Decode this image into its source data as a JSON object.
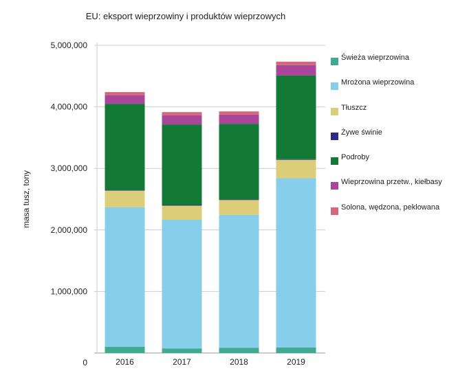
{
  "chart_data": {
    "type": "bar",
    "stacked": true,
    "title": "EU: eksport wieprzowiny i produktów wieprzowych",
    "xlabel": "",
    "ylabel": "masa tusz, tony",
    "ylim": [
      0,
      5000000
    ],
    "yticks": [
      "0",
      "1,000,000",
      "2,000,000",
      "3,000,000",
      "4,000,000",
      "5,000,000"
    ],
    "grid": true,
    "legend_position": "right",
    "categories": [
      "2016",
      "2017",
      "2018",
      "2019"
    ],
    "series": [
      {
        "name": "Świeża wieprzowina",
        "color": "#3fa991",
        "values": [
          100000,
          75000,
          86000,
          90000
        ]
      },
      {
        "name": "Mrożona wieprzowina",
        "color": "#87ceeb",
        "values": [
          2270000,
          2090000,
          2160000,
          2750000
        ]
      },
      {
        "name": "Tłuszcz",
        "color": "#dccd78",
        "values": [
          270000,
          230000,
          240000,
          300000
        ]
      },
      {
        "name": "Żywe świnie",
        "color": "#2e2a8c",
        "values": [
          10000,
          10000,
          10000,
          10000
        ]
      },
      {
        "name": "Podroby",
        "color": "#127a35",
        "values": [
          1400000,
          1310000,
          1230000,
          1360000
        ]
      },
      {
        "name": "Wieprzowina przetw., kiełbasy",
        "color": "#a94699",
        "values": [
          140000,
          150000,
          150000,
          170000
        ]
      },
      {
        "name": "Solona, wędzona, peklowana",
        "color": "#d2687a",
        "values": [
          50000,
          50000,
          50000,
          55000
        ]
      }
    ]
  }
}
